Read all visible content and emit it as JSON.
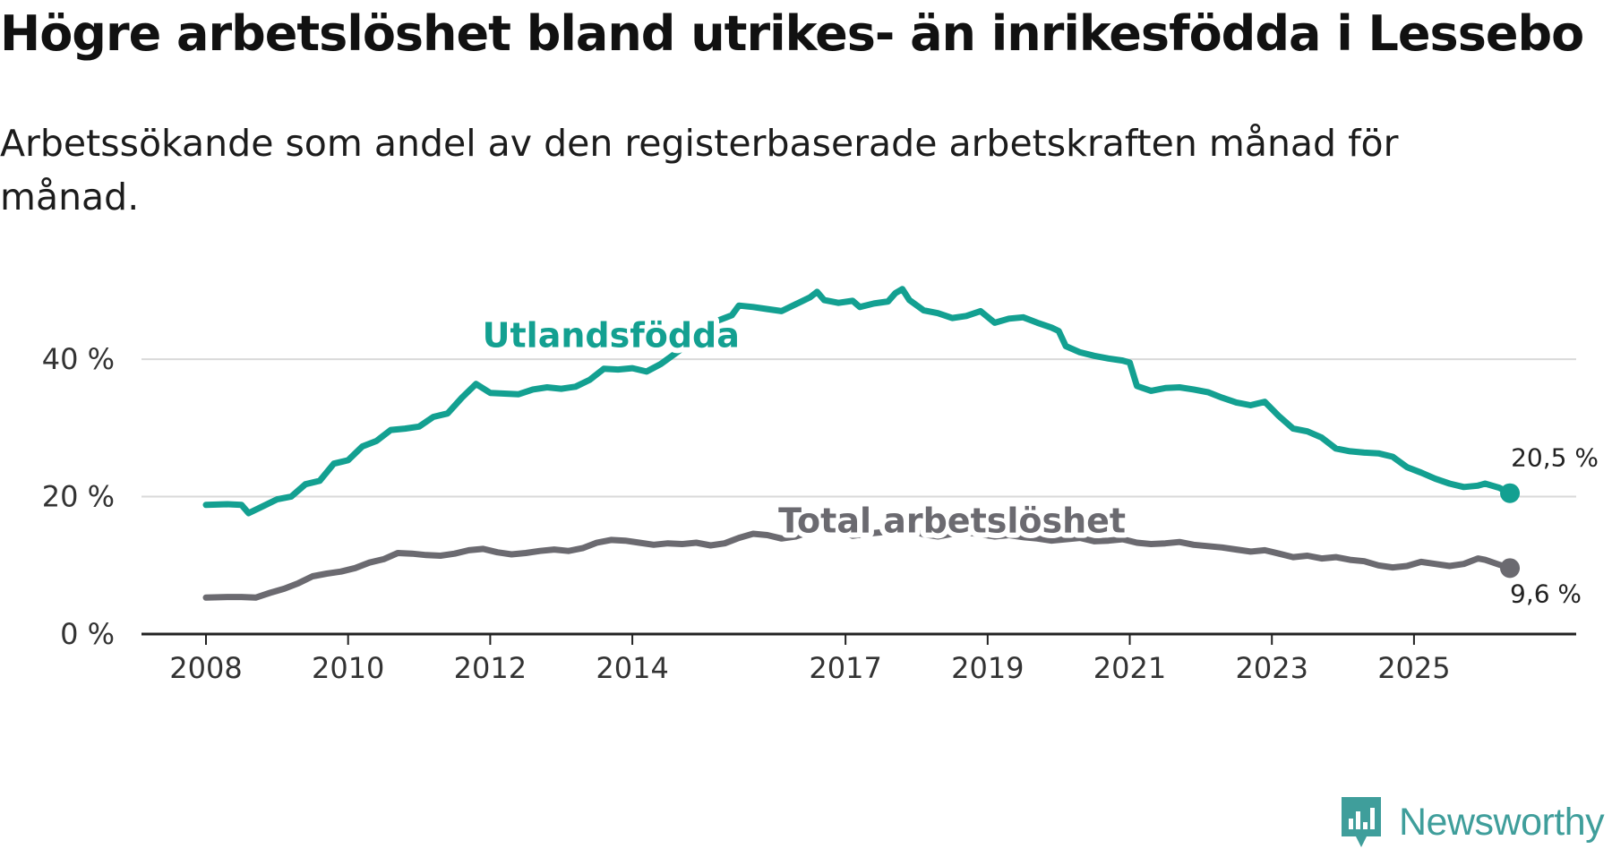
{
  "title": "Högre arbetslöshet bland utrikes- än inrikesfödda i Lessebo",
  "subtitle": "Arbetssökande som andel av den registerbaserade arbetskraften månad för månad.",
  "brand": {
    "name": "Newsworthy",
    "color": "#3f9e9b"
  },
  "colors": {
    "foreign": "#13a091",
    "total": "#6b6a70",
    "grid": "#d9d9d9",
    "axis": "#222222"
  },
  "chart_data": {
    "type": "line",
    "title": "Högre arbetslöshet bland utrikes- än inrikesfödda i Lessebo",
    "xlabel": "",
    "ylabel": "",
    "xlim": [
      2008.0,
      2026.4
    ],
    "ylim": [
      0,
      55
    ],
    "y_ticks": [
      0,
      20,
      40
    ],
    "y_tick_labels": [
      "0 %",
      "20 %",
      "40 %"
    ],
    "x_ticks": [
      2008,
      2010,
      2012,
      2014,
      2017,
      2019,
      2021,
      2023,
      2025
    ],
    "x_tick_labels": [
      "2008",
      "2010",
      "2012",
      "2014",
      "2017",
      "2019",
      "2021",
      "2023",
      "2025"
    ],
    "grid": true,
    "series": [
      {
        "name": "Utlandsfödda",
        "color": "#13a091",
        "end_label": "20,5 %",
        "points": [
          [
            2008.0,
            18.8
          ],
          [
            2008.3,
            18.9
          ],
          [
            2008.5,
            18.8
          ],
          [
            2008.6,
            17.6
          ],
          [
            2008.8,
            18.6
          ],
          [
            2009.0,
            19.6
          ],
          [
            2009.2,
            20.0
          ],
          [
            2009.4,
            21.8
          ],
          [
            2009.6,
            22.3
          ],
          [
            2009.8,
            24.8
          ],
          [
            2010.0,
            25.3
          ],
          [
            2010.2,
            27.3
          ],
          [
            2010.4,
            28.1
          ],
          [
            2010.6,
            29.7
          ],
          [
            2010.8,
            29.9
          ],
          [
            2011.0,
            30.2
          ],
          [
            2011.2,
            31.6
          ],
          [
            2011.4,
            32.1
          ],
          [
            2011.6,
            34.4
          ],
          [
            2011.8,
            36.4
          ],
          [
            2012.0,
            35.1
          ],
          [
            2012.2,
            35.0
          ],
          [
            2012.4,
            34.9
          ],
          [
            2012.6,
            35.6
          ],
          [
            2012.8,
            35.9
          ],
          [
            2013.0,
            35.7
          ],
          [
            2013.2,
            36.0
          ],
          [
            2013.4,
            37.0
          ],
          [
            2013.6,
            38.6
          ],
          [
            2013.8,
            38.5
          ],
          [
            2014.0,
            38.7
          ],
          [
            2014.2,
            38.2
          ],
          [
            2014.4,
            39.3
          ],
          [
            2014.6,
            40.8
          ],
          [
            2014.8,
            42.3
          ],
          [
            2015.0,
            44.1
          ],
          [
            2015.2,
            45.6
          ],
          [
            2015.4,
            46.4
          ],
          [
            2015.5,
            47.8
          ],
          [
            2015.7,
            47.6
          ],
          [
            2015.9,
            47.3
          ],
          [
            2016.1,
            47.0
          ],
          [
            2016.3,
            48.0
          ],
          [
            2016.5,
            49.0
          ],
          [
            2016.6,
            49.8
          ],
          [
            2016.7,
            48.6
          ],
          [
            2016.9,
            48.2
          ],
          [
            2017.1,
            48.5
          ],
          [
            2017.2,
            47.6
          ],
          [
            2017.4,
            48.1
          ],
          [
            2017.6,
            48.4
          ],
          [
            2017.7,
            49.6
          ],
          [
            2017.8,
            50.2
          ],
          [
            2017.9,
            48.6
          ],
          [
            2018.1,
            47.1
          ],
          [
            2018.3,
            46.7
          ],
          [
            2018.5,
            46.0
          ],
          [
            2018.7,
            46.3
          ],
          [
            2018.9,
            47.0
          ],
          [
            2019.1,
            45.3
          ],
          [
            2019.3,
            45.9
          ],
          [
            2019.5,
            46.1
          ],
          [
            2019.7,
            45.3
          ],
          [
            2019.9,
            44.6
          ],
          [
            2020.0,
            44.1
          ],
          [
            2020.1,
            41.9
          ],
          [
            2020.3,
            41.0
          ],
          [
            2020.5,
            40.5
          ],
          [
            2020.7,
            40.1
          ],
          [
            2020.9,
            39.8
          ],
          [
            2021.0,
            39.5
          ],
          [
            2021.1,
            36.1
          ],
          [
            2021.3,
            35.4
          ],
          [
            2021.5,
            35.8
          ],
          [
            2021.7,
            35.9
          ],
          [
            2021.9,
            35.6
          ],
          [
            2022.1,
            35.2
          ],
          [
            2022.3,
            34.4
          ],
          [
            2022.5,
            33.7
          ],
          [
            2022.7,
            33.3
          ],
          [
            2022.9,
            33.8
          ],
          [
            2023.1,
            31.7
          ],
          [
            2023.3,
            29.9
          ],
          [
            2023.5,
            29.5
          ],
          [
            2023.7,
            28.6
          ],
          [
            2023.9,
            27.0
          ],
          [
            2024.1,
            26.6
          ],
          [
            2024.3,
            26.4
          ],
          [
            2024.5,
            26.3
          ],
          [
            2024.7,
            25.8
          ],
          [
            2024.9,
            24.3
          ],
          [
            2025.1,
            23.5
          ],
          [
            2025.3,
            22.6
          ],
          [
            2025.5,
            21.9
          ],
          [
            2025.7,
            21.4
          ],
          [
            2025.9,
            21.6
          ],
          [
            2026.0,
            21.9
          ],
          [
            2026.2,
            21.3
          ],
          [
            2026.35,
            20.5
          ]
        ]
      },
      {
        "name": "Total arbetslöshet",
        "color": "#6b6a70",
        "end_label": "9,6 %",
        "points": [
          [
            2008.0,
            5.3
          ],
          [
            2008.3,
            5.4
          ],
          [
            2008.5,
            5.4
          ],
          [
            2008.7,
            5.3
          ],
          [
            2008.9,
            6.0
          ],
          [
            2009.1,
            6.6
          ],
          [
            2009.3,
            7.4
          ],
          [
            2009.5,
            8.4
          ],
          [
            2009.7,
            8.8
          ],
          [
            2009.9,
            9.1
          ],
          [
            2010.1,
            9.6
          ],
          [
            2010.3,
            10.4
          ],
          [
            2010.5,
            10.9
          ],
          [
            2010.7,
            11.8
          ],
          [
            2010.9,
            11.7
          ],
          [
            2011.1,
            11.5
          ],
          [
            2011.3,
            11.4
          ],
          [
            2011.5,
            11.7
          ],
          [
            2011.7,
            12.2
          ],
          [
            2011.9,
            12.4
          ],
          [
            2012.1,
            11.9
          ],
          [
            2012.3,
            11.6
          ],
          [
            2012.5,
            11.8
          ],
          [
            2012.7,
            12.1
          ],
          [
            2012.9,
            12.3
          ],
          [
            2013.1,
            12.1
          ],
          [
            2013.3,
            12.5
          ],
          [
            2013.5,
            13.3
          ],
          [
            2013.7,
            13.7
          ],
          [
            2013.9,
            13.6
          ],
          [
            2014.1,
            13.3
          ],
          [
            2014.3,
            13.0
          ],
          [
            2014.5,
            13.2
          ],
          [
            2014.7,
            13.1
          ],
          [
            2014.9,
            13.3
          ],
          [
            2015.1,
            12.9
          ],
          [
            2015.3,
            13.2
          ],
          [
            2015.5,
            14.0
          ],
          [
            2015.7,
            14.6
          ],
          [
            2015.9,
            14.4
          ],
          [
            2016.1,
            13.9
          ],
          [
            2016.3,
            14.2
          ],
          [
            2016.5,
            14.9
          ],
          [
            2016.7,
            15.4
          ],
          [
            2016.9,
            15.2
          ],
          [
            2017.1,
            14.3
          ],
          [
            2017.3,
            14.6
          ],
          [
            2017.5,
            14.8
          ],
          [
            2017.7,
            15.6
          ],
          [
            2017.9,
            15.2
          ],
          [
            2018.1,
            14.5
          ],
          [
            2018.3,
            14.2
          ],
          [
            2018.5,
            14.6
          ],
          [
            2018.7,
            14.8
          ],
          [
            2018.9,
            14.5
          ],
          [
            2019.1,
            14.2
          ],
          [
            2019.3,
            14.4
          ],
          [
            2019.5,
            14.1
          ],
          [
            2019.7,
            13.9
          ],
          [
            2019.9,
            13.6
          ],
          [
            2020.1,
            13.8
          ],
          [
            2020.3,
            14.0
          ],
          [
            2020.5,
            13.5
          ],
          [
            2020.7,
            13.6
          ],
          [
            2020.9,
            13.8
          ],
          [
            2021.1,
            13.3
          ],
          [
            2021.3,
            13.1
          ],
          [
            2021.5,
            13.2
          ],
          [
            2021.7,
            13.4
          ],
          [
            2021.9,
            13.0
          ],
          [
            2022.1,
            12.8
          ],
          [
            2022.3,
            12.6
          ],
          [
            2022.5,
            12.3
          ],
          [
            2022.7,
            12.0
          ],
          [
            2022.9,
            12.2
          ],
          [
            2023.1,
            11.7
          ],
          [
            2023.3,
            11.2
          ],
          [
            2023.5,
            11.4
          ],
          [
            2023.7,
            11.0
          ],
          [
            2023.9,
            11.2
          ],
          [
            2024.1,
            10.8
          ],
          [
            2024.3,
            10.6
          ],
          [
            2024.5,
            10.0
          ],
          [
            2024.7,
            9.7
          ],
          [
            2024.9,
            9.9
          ],
          [
            2025.1,
            10.5
          ],
          [
            2025.3,
            10.2
          ],
          [
            2025.5,
            9.9
          ],
          [
            2025.7,
            10.2
          ],
          [
            2025.9,
            11.0
          ],
          [
            2026.0,
            10.8
          ],
          [
            2026.2,
            10.1
          ],
          [
            2026.35,
            9.6
          ]
        ]
      }
    ]
  }
}
